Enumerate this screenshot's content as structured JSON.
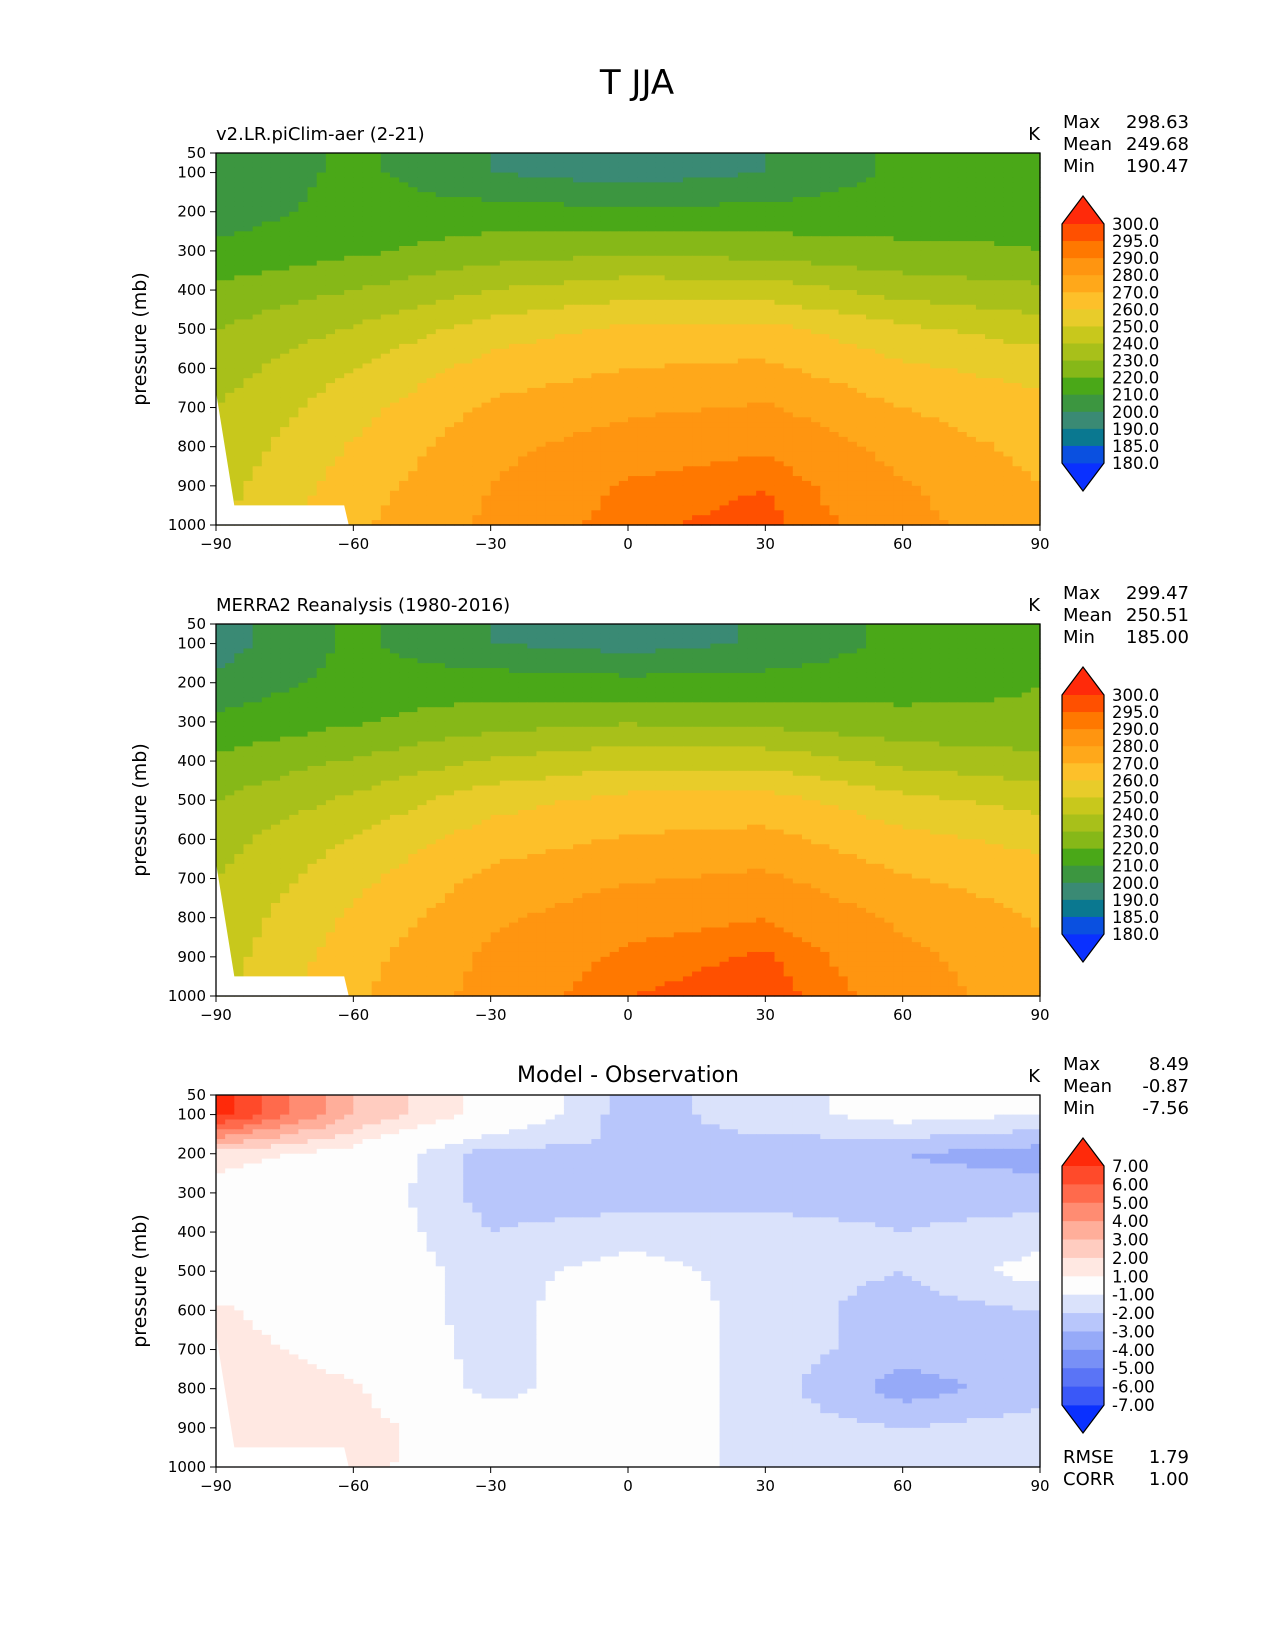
{
  "page": {
    "title": "T JJA"
  },
  "chart_data": [
    {
      "type": "heatmap",
      "title": "v2.LR.piClim-aer (2-21)",
      "units": "K",
      "xlabel": "",
      "ylabel": "pressure (mb)",
      "xlim": [
        -90,
        90
      ],
      "ylim": [
        1000,
        50
      ],
      "x_ticks": [
        -90,
        -60,
        -30,
        0,
        30,
        60,
        90
      ],
      "x_tick_labels": [
        "−90",
        "−60",
        "−30",
        "0",
        "30",
        "60",
        "90"
      ],
      "y_ticks": [
        50,
        100,
        200,
        300,
        400,
        500,
        600,
        700,
        800,
        900,
        1000
      ],
      "stats": [
        {
          "label": "Max",
          "value": "298.63"
        },
        {
          "label": "Mean",
          "value": "249.68"
        },
        {
          "label": "Min",
          "value": "190.47"
        }
      ],
      "colorbar": {
        "levels": [
          "300.0",
          "295.0",
          "290.0",
          "280.0",
          "270.0",
          "260.0",
          "250.0",
          "240.0",
          "230.0",
          "220.0",
          "210.0",
          "200.0",
          "190.0",
          "185.0",
          "180.0"
        ],
        "colors": [
          "#ff2a0a",
          "#ff5000",
          "#ff7800",
          "#ff9510",
          "#ffa81a",
          "#fdc02a",
          "#e8cc2a",
          "#c8c81c",
          "#a8c01a",
          "#86b818",
          "#4aa818",
          "#3c9640",
          "#3a8a74",
          "#0a7890",
          "#0a50e0",
          "#0a30ff"
        ]
      },
      "series": [
        {
          "x": [
            -90,
            -60,
            -30,
            0,
            30,
            60,
            90
          ],
          "p": 100,
          "values": [
            200,
            213,
            200,
            195,
            200,
            212,
            215
          ]
        },
        {
          "x": [
            -90,
            -60,
            -30,
            0,
            30,
            60,
            90
          ],
          "p": 200,
          "values": [
            205,
            214,
            214,
            212,
            213,
            215,
            218
          ]
        },
        {
          "x": [
            -90,
            -60,
            -30,
            0,
            30,
            60,
            90
          ],
          "p": 300,
          "values": [
            212,
            218,
            225,
            228,
            226,
            222,
            220
          ]
        },
        {
          "x": [
            -90,
            -60,
            -30,
            0,
            30,
            60,
            90
          ],
          "p": 400,
          "values": [
            222,
            230,
            240,
            246,
            245,
            236,
            232
          ]
        },
        {
          "x": [
            -90,
            -60,
            -30,
            0,
            30,
            60,
            90
          ],
          "p": 500,
          "values": [
            230,
            241,
            255,
            262,
            263,
            252,
            245
          ]
        },
        {
          "x": [
            -90,
            -60,
            -30,
            0,
            30,
            60,
            90
          ],
          "p": 600,
          "values": [
            235,
            250,
            264,
            270,
            272,
            262,
            256
          ]
        },
        {
          "x": [
            -90,
            -60,
            -30,
            0,
            30,
            60,
            90
          ],
          "p": 700,
          "values": [
            240,
            256,
            272,
            278,
            281,
            270,
            263
          ]
        },
        {
          "x": [
            -90,
            -60,
            -30,
            0,
            30,
            60,
            90
          ],
          "p": 800,
          "values": [
            243,
            261,
            277,
            285,
            289,
            276,
            267
          ]
        },
        {
          "x": [
            -90,
            -60,
            -30,
            0,
            30,
            60,
            90
          ],
          "p": 900,
          "values": [
            246,
            265,
            280,
            291,
            295,
            281,
            270
          ]
        },
        {
          "x": [
            -90,
            -60,
            -30,
            0,
            30,
            60,
            90
          ],
          "p": 1000,
          "values": [
            248,
            268,
            282,
            294,
            297,
            284,
            272
          ]
        }
      ]
    },
    {
      "type": "heatmap",
      "title": "MERRA2 Reanalysis (1980-2016)",
      "units": "K",
      "xlabel": "",
      "ylabel": "pressure (mb)",
      "xlim": [
        -90,
        90
      ],
      "ylim": [
        1000,
        50
      ],
      "x_ticks": [
        -90,
        -60,
        -30,
        0,
        30,
        60,
        90
      ],
      "x_tick_labels": [
        "−90",
        "−60",
        "−30",
        "0",
        "30",
        "60",
        "90"
      ],
      "y_ticks": [
        50,
        100,
        200,
        300,
        400,
        500,
        600,
        700,
        800,
        900,
        1000
      ],
      "stats": [
        {
          "label": "Max",
          "value": "299.47"
        },
        {
          "label": "Mean",
          "value": "250.51"
        },
        {
          "label": "Min",
          "value": "185.00"
        }
      ],
      "colorbar": {
        "levels": [
          "300.0",
          "295.0",
          "290.0",
          "280.0",
          "270.0",
          "260.0",
          "250.0",
          "240.0",
          "230.0",
          "220.0",
          "210.0",
          "200.0",
          "190.0",
          "185.0",
          "180.0"
        ],
        "colors": [
          "#ff2a0a",
          "#ff5000",
          "#ff7800",
          "#ff9510",
          "#ffa81a",
          "#fdc02a",
          "#e8cc2a",
          "#c8c81c",
          "#a8c01a",
          "#86b818",
          "#4aa818",
          "#3c9640",
          "#3a8a74",
          "#0a7890",
          "#0a50e0",
          "#0a30ff"
        ]
      },
      "series": [
        {
          "x": [
            -90,
            -60,
            -30,
            0,
            30,
            60,
            90
          ],
          "p": 100,
          "values": [
            195,
            212,
            200,
            196,
            201,
            213,
            217
          ]
        },
        {
          "x": [
            -90,
            -60,
            -30,
            0,
            30,
            60,
            90
          ],
          "p": 200,
          "values": [
            203,
            214,
            215,
            213,
            214,
            216,
            220
          ]
        },
        {
          "x": [
            -90,
            -60,
            -30,
            0,
            30,
            60,
            90
          ],
          "p": 300,
          "values": [
            212,
            219,
            226,
            229,
            227,
            223,
            221
          ]
        },
        {
          "x": [
            -90,
            -60,
            -30,
            0,
            30,
            60,
            90
          ],
          "p": 400,
          "values": [
            222,
            231,
            241,
            247,
            246,
            237,
            233
          ]
        },
        {
          "x": [
            -90,
            -60,
            -30,
            0,
            30,
            60,
            90
          ],
          "p": 500,
          "values": [
            230,
            242,
            256,
            263,
            264,
            253,
            246
          ]
        },
        {
          "x": [
            -90,
            -60,
            -30,
            0,
            30,
            60,
            90
          ],
          "p": 600,
          "values": [
            236,
            251,
            265,
            271,
            273,
            263,
            257
          ]
        },
        {
          "x": [
            -90,
            -60,
            -30,
            0,
            30,
            60,
            90
          ],
          "p": 700,
          "values": [
            240,
            257,
            273,
            279,
            282,
            271,
            265
          ]
        },
        {
          "x": [
            -90,
            -60,
            -30,
            0,
            30,
            60,
            90
          ],
          "p": 800,
          "values": [
            243,
            262,
            278,
            286,
            290,
            278,
            269
          ]
        },
        {
          "x": [
            -90,
            -60,
            -30,
            0,
            30,
            60,
            90
          ],
          "p": 900,
          "values": [
            245,
            266,
            282,
            292,
            296,
            283,
            272
          ]
        },
        {
          "x": [
            -90,
            -60,
            -30,
            0,
            30,
            60,
            90
          ],
          "p": 1000,
          "values": [
            247,
            268,
            284,
            295,
            298,
            286,
            274
          ]
        }
      ]
    },
    {
      "type": "heatmap",
      "title": "Model - Observation",
      "units": "K",
      "xlabel": "",
      "ylabel": "pressure (mb)",
      "xlim": [
        -90,
        90
      ],
      "ylim": [
        1000,
        50
      ],
      "x_ticks": [
        -90,
        -60,
        -30,
        0,
        30,
        60,
        90
      ],
      "x_tick_labels": [
        "−90",
        "−60",
        "−30",
        "0",
        "30",
        "60",
        "90"
      ],
      "y_ticks": [
        50,
        100,
        200,
        300,
        400,
        500,
        600,
        700,
        800,
        900,
        1000
      ],
      "stats": [
        {
          "label": "Max",
          "value": "8.49"
        },
        {
          "label": "Mean",
          "value": "-0.87"
        },
        {
          "label": "Min",
          "value": "-7.56"
        }
      ],
      "extra_stats": [
        {
          "label": "RMSE",
          "value": "1.79"
        },
        {
          "label": "CORR",
          "value": "1.00"
        }
      ],
      "colorbar": {
        "levels": [
          "7.00",
          "6.00",
          "5.00",
          "4.00",
          "3.00",
          "2.00",
          "1.00",
          "-1.00",
          "-2.00",
          "-3.00",
          "-4.00",
          "-5.00",
          "-6.00",
          "-7.00"
        ],
        "colors": [
          "#ff2a0a",
          "#ff4a2a",
          "#ff6a4c",
          "#ff8c72",
          "#ffae9a",
          "#ffccc0",
          "#ffe8e2",
          "#fdfdfd",
          "#dae2fb",
          "#b8c6fb",
          "#96aaf8",
          "#7890f6",
          "#5a74f6",
          "#3a58f8",
          "#0a30ff"
        ]
      },
      "series": [
        {
          "x": [
            -90,
            -60,
            -30,
            0,
            30,
            60,
            90
          ],
          "p": 100,
          "values": [
            7.5,
            3,
            0.5,
            -2.5,
            -1.5,
            -0.5,
            -1
          ]
        },
        {
          "x": [
            -90,
            -60,
            -30,
            0,
            30,
            60,
            90
          ],
          "p": 200,
          "values": [
            1.5,
            0.5,
            -2.5,
            -2,
            -2.5,
            -3,
            -3.5
          ]
        },
        {
          "x": [
            -90,
            -60,
            -30,
            0,
            30,
            60,
            90
          ],
          "p": 300,
          "values": [
            0.5,
            0,
            -2.5,
            -2.5,
            -2.5,
            -2.5,
            -2.5
          ]
        },
        {
          "x": [
            -90,
            -60,
            -30,
            0,
            30,
            60,
            90
          ],
          "p": 400,
          "values": [
            0,
            0,
            -2,
            -1.5,
            -1.5,
            -2,
            -1.5
          ]
        },
        {
          "x": [
            -90,
            -60,
            -30,
            0,
            30,
            60,
            90
          ],
          "p": 500,
          "values": [
            0,
            0,
            -1.5,
            -0.5,
            -1.5,
            -2,
            -0.5
          ]
        },
        {
          "x": [
            -90,
            -60,
            -30,
            0,
            30,
            60,
            90
          ],
          "p": 600,
          "values": [
            1.2,
            0,
            -1.5,
            0,
            -1.5,
            -2.5,
            -2
          ]
        },
        {
          "x": [
            -90,
            -60,
            -30,
            0,
            30,
            60,
            90
          ],
          "p": 700,
          "values": [
            1.5,
            0.5,
            -1.5,
            0,
            -1.5,
            -2.5,
            -2.5
          ]
        },
        {
          "x": [
            -90,
            -60,
            -30,
            0,
            30,
            60,
            90
          ],
          "p": 800,
          "values": [
            1.5,
            1.2,
            -1.5,
            0,
            -1.5,
            -3.5,
            -2.5
          ]
        },
        {
          "x": [
            -90,
            -60,
            -30,
            0,
            30,
            60,
            90
          ],
          "p": 900,
          "values": [
            2,
            1.5,
            0,
            0,
            -1.5,
            -2,
            -1.5
          ]
        },
        {
          "x": [
            -90,
            -60,
            -30,
            0,
            30,
            60,
            90
          ],
          "p": 1000,
          "values": [
            1.5,
            1.2,
            0.5,
            0,
            -1.5,
            -1.5,
            -1.5
          ]
        }
      ]
    }
  ]
}
